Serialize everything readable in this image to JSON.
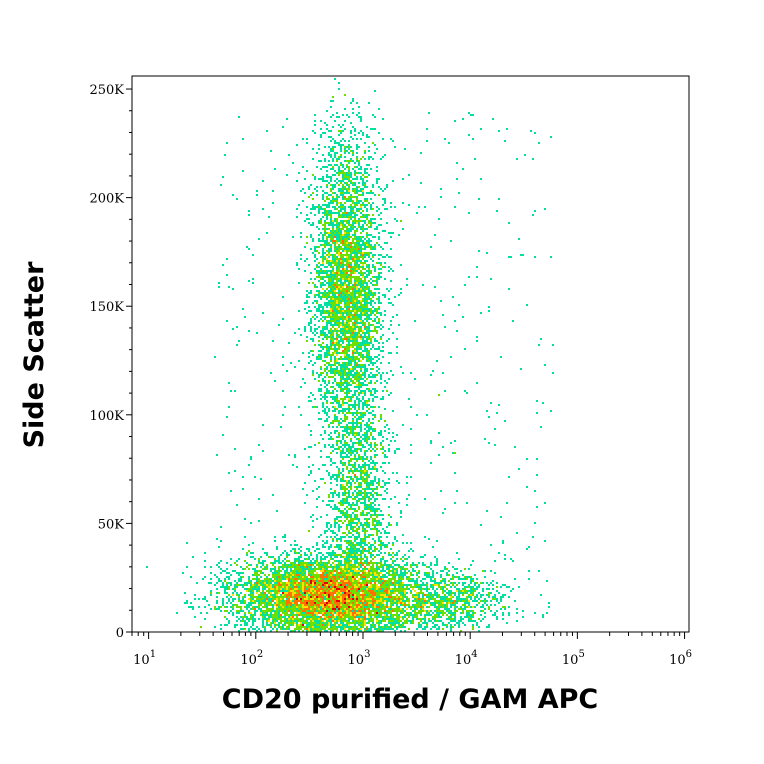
{
  "chart_data": {
    "type": "scatter",
    "title": "",
    "xlabel": "CD20 purified / GAM APC",
    "ylabel": "Side Scatter",
    "x_scale": "log",
    "xlim": [
      7,
      1100000
    ],
    "ylim": [
      0,
      256000
    ],
    "x_ticks": [
      {
        "base": "10",
        "exp": "1",
        "value": 10
      },
      {
        "base": "10",
        "exp": "2",
        "value": 100
      },
      {
        "base": "10",
        "exp": "3",
        "value": 1000
      },
      {
        "base": "10",
        "exp": "4",
        "value": 10000
      },
      {
        "base": "10",
        "exp": "5",
        "value": 100000
      },
      {
        "base": "10",
        "exp": "6",
        "value": 1000000
      }
    ],
    "y_ticks": [
      {
        "label": "0",
        "value": 0
      },
      {
        "label": "50K",
        "value": 50000
      },
      {
        "label": "100K",
        "value": 100000
      },
      {
        "label": "150K",
        "value": 150000
      },
      {
        "label": "200K",
        "value": 200000
      },
      {
        "label": "250K",
        "value": 250000
      }
    ],
    "density_colormap": [
      "#0000ee",
      "#00b4ff",
      "#00e0a0",
      "#6ee000",
      "#ffe000",
      "#ff7000",
      "#e00000"
    ],
    "populations": [
      {
        "x_center": 450,
        "y_center": 17000,
        "x_log_spread": 0.42,
        "y_spread": 9000,
        "points": 7000
      },
      {
        "x_center": 700,
        "y_center": 160000,
        "x_log_spread": 0.16,
        "y_spread": 33000,
        "points": 4500
      },
      {
        "x_center": 900,
        "y_center": 60000,
        "x_log_spread": 0.16,
        "y_spread": 30000,
        "points": 1800
      },
      {
        "x_center": 5000,
        "y_center": 15000,
        "x_log_spread": 0.35,
        "y_spread": 7000,
        "points": 1100
      }
    ],
    "grid": false
  }
}
